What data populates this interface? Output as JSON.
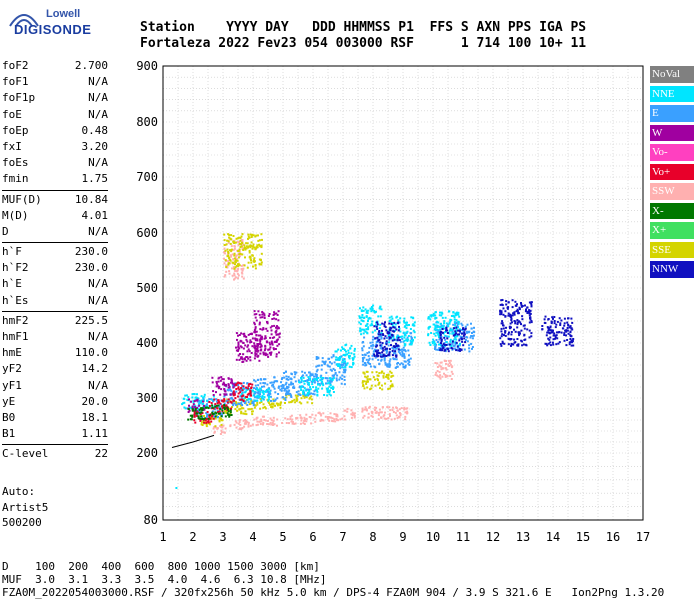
{
  "logo": {
    "top": "Lowell",
    "bottom": "DIGISONDE"
  },
  "header": {
    "line1": "Station    YYYY DAY   DDD HHMMSS P1  FFS S AXN PPS IGA PS",
    "line2": "Fortaleza 2022 Fev23 054 003000 RSF      1 714 100 10+ 11"
  },
  "params": [
    [
      {
        "k": "foF2",
        "v": "2.700"
      },
      {
        "k": "foF1",
        "v": "N/A"
      },
      {
        "k": "foF1p",
        "v": "N/A"
      },
      {
        "k": "foE",
        "v": "N/A"
      },
      {
        "k": "foEp",
        "v": "0.48"
      },
      {
        "k": "fxI",
        "v": "3.20"
      },
      {
        "k": "foEs",
        "v": "N/A"
      },
      {
        "k": "fmin",
        "v": "1.75"
      }
    ],
    [
      {
        "k": "MUF(D)",
        "v": "10.84"
      },
      {
        "k": "M(D)",
        "v": "4.01"
      },
      {
        "k": "D",
        "v": "N/A"
      }
    ],
    [
      {
        "k": "h`F",
        "v": "230.0"
      },
      {
        "k": "h`F2",
        "v": "230.0"
      },
      {
        "k": "h`E",
        "v": "N/A"
      },
      {
        "k": "h`Es",
        "v": "N/A"
      }
    ],
    [
      {
        "k": "hmF2",
        "v": "225.5"
      },
      {
        "k": "hmF1",
        "v": "N/A"
      },
      {
        "k": "hmE",
        "v": "110.0"
      },
      {
        "k": "yF2",
        "v": "14.2"
      },
      {
        "k": "yF1",
        "v": "N/A"
      },
      {
        "k": "yE",
        "v": "20.0"
      },
      {
        "k": "B0",
        "v": "18.1"
      },
      {
        "k": "B1",
        "v": "1.11"
      }
    ],
    [
      {
        "k": "C-level",
        "v": "22"
      }
    ]
  ],
  "auto": {
    "line1": "Auto:",
    "line2": "Artist5",
    "line3": "500200"
  },
  "footer": {
    "d_line": "D    100  200  400  600  800 1000 1500 3000 [km]",
    "muf_line": "MUF  3.0  3.1  3.3  3.5  4.0  4.6  6.3 10.8 [MHz]",
    "file_line": "FZA0M_2022054003000.RSF / 320fx256h 50 kHz 5.0 km / DPS-4 FZA0M 904 / 3.9 S 321.6 E   Ion2Png 1.3.20"
  },
  "legend": [
    {
      "label": "NoVal",
      "color": "#808080"
    },
    {
      "label": "NNE",
      "color": "#00e5ff"
    },
    {
      "label": "E",
      "color": "#3aa0ff"
    },
    {
      "label": "W",
      "color": "#a000a0"
    },
    {
      "label": "Vo-",
      "color": "#ff40c0"
    },
    {
      "label": "Vo+",
      "color": "#e8002a"
    },
    {
      "label": "SSW",
      "color": "#ffb0b0"
    },
    {
      "label": "X-",
      "color": "#007800"
    },
    {
      "label": "X+",
      "color": "#40e060"
    },
    {
      "label": "SSE",
      "color": "#d4d400"
    },
    {
      "label": "NNW",
      "color": "#1010c0"
    }
  ],
  "chart_data": {
    "type": "scatter",
    "x_ticks": [
      1,
      2,
      3,
      4,
      5,
      6,
      7,
      8,
      9,
      10,
      11,
      12,
      13,
      14,
      15,
      16,
      17
    ],
    "y_ticks": [
      80,
      200,
      300,
      400,
      500,
      600,
      700,
      800,
      900
    ],
    "xlim": [
      1,
      17
    ],
    "ylim": [
      80,
      900
    ],
    "grid": true,
    "legend_position": "right",
    "series": [
      {
        "name": "SSW",
        "color_ref": "SSW",
        "clusters": [
          [
            2.6,
            255,
            3.0,
            240
          ],
          [
            3.2,
            262,
            3.9,
            248
          ],
          [
            4.0,
            268,
            4.9,
            255
          ],
          [
            5.0,
            272,
            5.9,
            258
          ],
          [
            6.0,
            276,
            6.9,
            262
          ],
          [
            7.0,
            282,
            7.3,
            266
          ],
          [
            7.6,
            286,
            9.1,
            266
          ],
          [
            10.0,
            370,
            10.6,
            340
          ],
          [
            3.0,
            590,
            3.6,
            520
          ]
        ]
      },
      {
        "name": "SSE",
        "color_ref": "SSE",
        "clusters": [
          [
            2.2,
            270,
            2.9,
            252
          ],
          [
            3.0,
            300,
            3.9,
            275
          ],
          [
            4.0,
            300,
            4.9,
            285
          ],
          [
            5.0,
            310,
            5.9,
            295
          ],
          [
            7.6,
            350,
            8.6,
            320
          ],
          [
            3.0,
            600,
            4.2,
            540
          ]
        ]
      },
      {
        "name": "E",
        "color_ref": "E",
        "clusters": [
          [
            2.0,
            300,
            2.9,
            270
          ],
          [
            3.0,
            330,
            4.0,
            290
          ],
          [
            4.0,
            340,
            5.2,
            300
          ],
          [
            5.0,
            350,
            6.0,
            310
          ],
          [
            6.0,
            380,
            7.0,
            330
          ],
          [
            7.6,
            420,
            8.5,
            360
          ],
          [
            8.6,
            420,
            9.2,
            360
          ],
          [
            10.0,
            440,
            11.3,
            390
          ]
        ]
      },
      {
        "name": "NNE",
        "color_ref": "NNE",
        "clusters": [
          [
            1.6,
            310,
            2.6,
            285
          ],
          [
            3.5,
            320,
            4.5,
            300
          ],
          [
            5.5,
            340,
            6.6,
            310
          ],
          [
            6.7,
            400,
            7.3,
            360
          ],
          [
            7.5,
            470,
            8.2,
            420
          ],
          [
            8.5,
            450,
            9.3,
            400
          ],
          [
            9.8,
            460,
            10.8,
            400
          ],
          [
            1.4,
            140,
            1.4,
            140
          ]
        ]
      },
      {
        "name": "W",
        "color_ref": "W",
        "clusters": [
          [
            3.4,
            420,
            4.2,
            370
          ],
          [
            4.0,
            460,
            4.8,
            380
          ],
          [
            2.6,
            340,
            3.3,
            310
          ],
          [
            1.8,
            300,
            2.3,
            280
          ]
        ]
      },
      {
        "name": "Vo+",
        "color_ref": "Vo+",
        "clusters": [
          [
            2.5,
            300,
            3.2,
            280
          ],
          [
            3.3,
            330,
            3.9,
            300
          ],
          [
            2.0,
            280,
            2.6,
            260
          ]
        ]
      },
      {
        "name": "X-",
        "color_ref": "X-",
        "clusters": [
          [
            1.8,
            285,
            2.5,
            265
          ],
          [
            2.6,
            290,
            3.2,
            270
          ]
        ]
      },
      {
        "name": "NNW",
        "color_ref": "NNW",
        "clusters": [
          [
            12.2,
            480,
            13.2,
            400
          ],
          [
            13.6,
            450,
            14.6,
            400
          ],
          [
            10.2,
            430,
            11.0,
            390
          ],
          [
            8.0,
            440,
            8.8,
            380
          ]
        ]
      }
    ],
    "trace": [
      [
        1.3,
        210
      ],
      [
        2.0,
        220
      ],
      [
        2.7,
        232
      ]
    ]
  }
}
